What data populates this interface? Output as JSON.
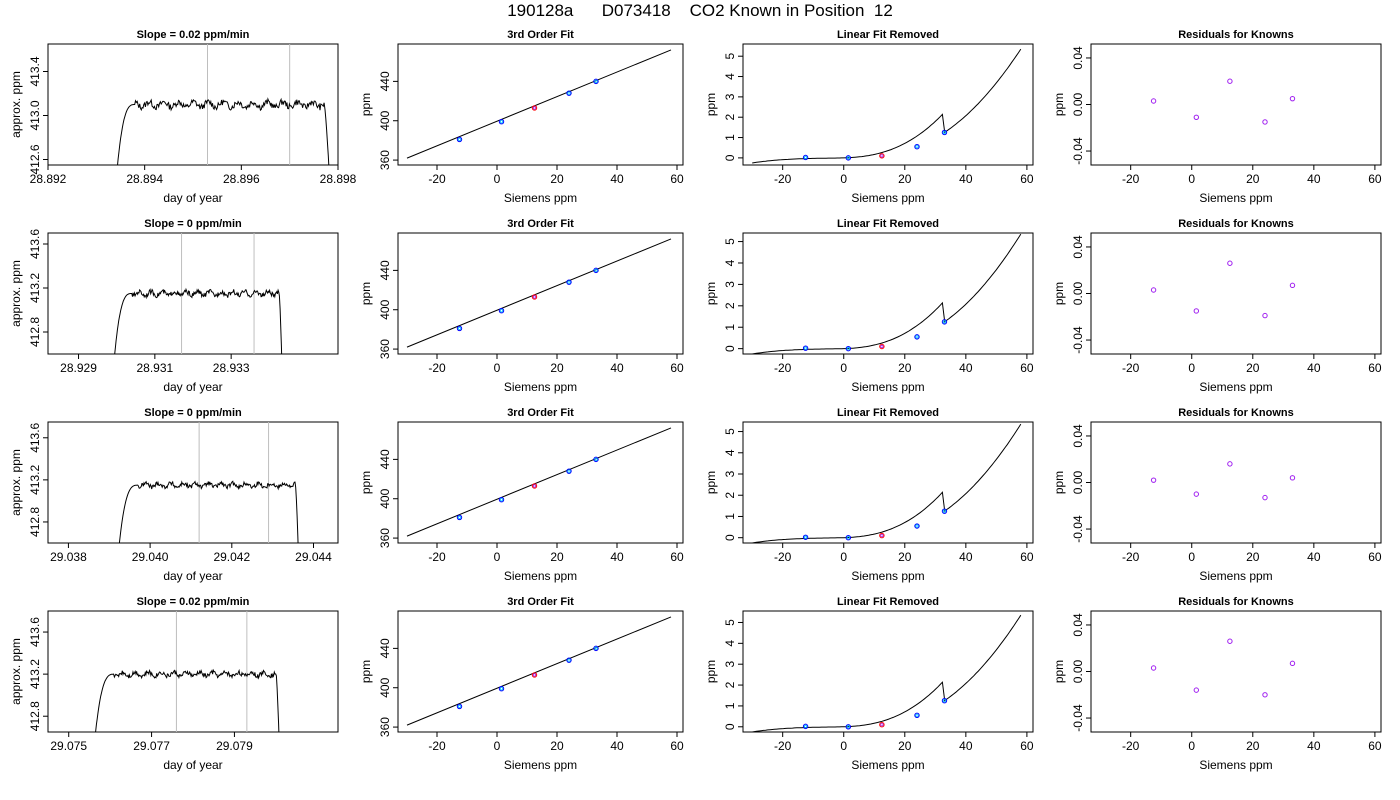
{
  "title": "190128a      D073418    CO2 Known in Position  12",
  "colors": {
    "line": "#000000",
    "vline": "#bebebe",
    "point_blue": "#0000ff",
    "point_purple": "#a020f0",
    "point_cyan": "#00bfff",
    "point_red": "#ff0000"
  },
  "chart_data": [
    {
      "type": "line",
      "title": "Slope =  0.02  ppm/min",
      "xlabel": "day of year",
      "ylabel": "approx. ppm",
      "xlim": [
        28.892,
        28.898
      ],
      "ylim": [
        412.55,
        413.65
      ],
      "xticks": [
        "28.892",
        "28.894",
        "28.896",
        "28.898"
      ],
      "yticks": [
        "412.6",
        "413.0",
        "413.4"
      ],
      "vlines": [
        28.8953,
        28.897
      ],
      "trace": {
        "x_start": 28.8934,
        "x_rise_end": 28.8938,
        "x_fall": 28.8977,
        "x_end": 28.89785,
        "level": 413.1,
        "amplitude": 0.04
      },
      "grid": false
    },
    {
      "type": "scatter",
      "title": "3rd Order Fit",
      "xlabel": "Siemens ppm",
      "ylabel": "ppm",
      "xlim": [
        -33,
        62
      ],
      "ylim": [
        355,
        478
      ],
      "xticks": [
        "-20",
        "0",
        "20",
        "40",
        "60"
      ],
      "yticks": [
        "360",
        "400",
        "440"
      ],
      "points": {
        "x": [
          -12.5,
          1.5,
          12.5,
          24,
          33
        ],
        "y": [
          381,
          399,
          413,
          428,
          440
        ]
      },
      "fit_line": {
        "x": [
          -30,
          58
        ],
        "y": [
          362,
          472
        ]
      },
      "grid": false
    },
    {
      "type": "line",
      "title": "Linear Fit Removed",
      "xlabel": "Siemens ppm",
      "ylabel": "ppm",
      "xlim": [
        -33,
        62
      ],
      "ylim": [
        -0.35,
        5.6
      ],
      "xticks": [
        "-20",
        "0",
        "20",
        "40",
        "60"
      ],
      "yticks": [
        "0",
        "1",
        "2",
        "3",
        "4",
        "5"
      ],
      "points": {
        "x": [
          -12.5,
          1.5,
          12.5,
          24,
          33
        ],
        "y": [
          0.02,
          0.0,
          0.1,
          0.55,
          1.25
        ]
      },
      "curve_x_range": [
        -30,
        58
      ],
      "grid": false
    },
    {
      "type": "scatter",
      "title": "Residuals for Knowns",
      "xlabel": "Siemens ppm",
      "ylabel": "ppm",
      "xlim": [
        -33,
        62
      ],
      "ylim": [
        -0.052,
        0.052
      ],
      "xticks": [
        "-20",
        "0",
        "20",
        "40",
        "60"
      ],
      "yticks": [
        "-0.04",
        "0.00",
        "0.04"
      ],
      "points": {
        "x": [
          -12.5,
          1.5,
          12.5,
          24,
          33
        ],
        "y": [
          0.003,
          -0.011,
          0.02,
          -0.015,
          0.005
        ]
      },
      "grid": false
    },
    {
      "type": "line",
      "title": "Slope =  0  ppm/min",
      "xlabel": "day of year",
      "ylabel": "approx. ppm",
      "xlim": [
        28.9282,
        28.9358
      ],
      "ylim": [
        412.6,
        413.7
      ],
      "xticks": [
        "28.929",
        "28.931",
        "28.933"
      ],
      "yticks": [
        "412.8",
        "413.2",
        "413.6"
      ],
      "vlines": [
        28.9317,
        28.9336
      ],
      "trace": {
        "x_start": 28.9299,
        "x_rise_end": 28.9304,
        "x_fall": 28.93425,
        "x_end": 28.93435,
        "level": 413.15,
        "amplitude": 0.03
      },
      "grid": false
    },
    {
      "type": "scatter",
      "title": "3rd Order Fit",
      "xlabel": "Siemens ppm",
      "ylabel": "ppm",
      "xlim": [
        -33,
        62
      ],
      "ylim": [
        355,
        478
      ],
      "xticks": [
        "-20",
        "0",
        "20",
        "40",
        "60"
      ],
      "yticks": [
        "360",
        "400",
        "440"
      ],
      "points": {
        "x": [
          -12.5,
          1.5,
          12.5,
          24,
          33
        ],
        "y": [
          381,
          399,
          413,
          428,
          440
        ]
      },
      "fit_line": {
        "x": [
          -30,
          58
        ],
        "y": [
          362,
          472
        ]
      },
      "grid": false
    },
    {
      "type": "line",
      "title": "Linear Fit Removed",
      "xlabel": "Siemens ppm",
      "ylabel": "ppm",
      "xlim": [
        -33,
        62
      ],
      "ylim": [
        -0.25,
        5.4
      ],
      "xticks": [
        "-20",
        "0",
        "20",
        "40",
        "60"
      ],
      "yticks": [
        "0",
        "1",
        "2",
        "3",
        "4",
        "5"
      ],
      "points": {
        "x": [
          -12.5,
          1.5,
          12.5,
          24,
          33
        ],
        "y": [
          0.02,
          0.0,
          0.1,
          0.55,
          1.25
        ]
      },
      "curve_x_range": [
        -30,
        58
      ],
      "grid": false
    },
    {
      "type": "scatter",
      "title": "Residuals for Knowns",
      "xlabel": "Siemens ppm",
      "ylabel": "ppm",
      "xlim": [
        -33,
        62
      ],
      "ylim": [
        -0.052,
        0.052
      ],
      "xticks": [
        "-20",
        "0",
        "20",
        "40",
        "60"
      ],
      "yticks": [
        "-0.04",
        "0.00",
        "0.04"
      ],
      "points": {
        "x": [
          -12.5,
          1.5,
          12.5,
          24,
          33
        ],
        "y": [
          0.003,
          -0.015,
          0.026,
          -0.019,
          0.007
        ]
      },
      "grid": false
    },
    {
      "type": "line",
      "title": "Slope =  0  ppm/min",
      "xlabel": "day of year",
      "ylabel": "approx. ppm",
      "xlim": [
        29.0375,
        29.0446
      ],
      "ylim": [
        412.6,
        413.75
      ],
      "xticks": [
        "29.038",
        "29.040",
        "29.042",
        "29.044"
      ],
      "yticks": [
        "412.8",
        "413.2",
        "413.6"
      ],
      "vlines": [
        29.0412,
        29.0429
      ],
      "trace": {
        "x_start": 29.0392,
        "x_rise_end": 29.0397,
        "x_fall": 29.04355,
        "x_end": 29.04365,
        "level": 413.15,
        "amplitude": 0.03
      },
      "grid": false
    },
    {
      "type": "scatter",
      "title": "3rd Order Fit",
      "xlabel": "Siemens ppm",
      "ylabel": "ppm",
      "xlim": [
        -33,
        62
      ],
      "ylim": [
        355,
        478
      ],
      "xticks": [
        "-20",
        "0",
        "20",
        "40",
        "60"
      ],
      "yticks": [
        "360",
        "400",
        "440"
      ],
      "points": {
        "x": [
          -12.5,
          1.5,
          12.5,
          24,
          33
        ],
        "y": [
          381,
          399,
          413,
          428,
          440
        ]
      },
      "fit_line": {
        "x": [
          -30,
          58
        ],
        "y": [
          362,
          472
        ]
      },
      "grid": false
    },
    {
      "type": "line",
      "title": "Linear Fit Removed",
      "xlabel": "Siemens ppm",
      "ylabel": "ppm",
      "xlim": [
        -33,
        62
      ],
      "ylim": [
        -0.25,
        5.45
      ],
      "xticks": [
        "-20",
        "0",
        "20",
        "40",
        "60"
      ],
      "yticks": [
        "0",
        "1",
        "2",
        "3",
        "4",
        "5"
      ],
      "points": {
        "x": [
          -12.5,
          1.5,
          12.5,
          24,
          33
        ],
        "y": [
          0.02,
          0.0,
          0.1,
          0.55,
          1.25
        ]
      },
      "curve_x_range": [
        -30,
        58
      ],
      "grid": false
    },
    {
      "type": "scatter",
      "title": "Residuals for Knowns",
      "xlabel": "Siemens ppm",
      "ylabel": "ppm",
      "xlim": [
        -33,
        62
      ],
      "ylim": [
        -0.052,
        0.052
      ],
      "xticks": [
        "-20",
        "0",
        "20",
        "40",
        "60"
      ],
      "yticks": [
        "-0.04",
        "0.00",
        "0.04"
      ],
      "points": {
        "x": [
          -12.5,
          1.5,
          12.5,
          24,
          33
        ],
        "y": [
          0.002,
          -0.01,
          0.016,
          -0.013,
          0.004
        ]
      },
      "grid": false
    },
    {
      "type": "line",
      "title": "Slope =  0.02  ppm/min",
      "xlabel": "day of year",
      "ylabel": "approx. ppm",
      "xlim": [
        29.0745,
        29.0815
      ],
      "ylim": [
        412.65,
        413.8
      ],
      "xticks": [
        "29.075",
        "29.077",
        "29.079"
      ],
      "yticks": [
        "412.8",
        "413.2",
        "413.6"
      ],
      "vlines": [
        29.0776,
        29.0793
      ],
      "trace": {
        "x_start": 29.0756,
        "x_rise_end": 29.0761,
        "x_fall": 29.08,
        "x_end": 29.0801,
        "level": 413.2,
        "amplitude": 0.03
      },
      "grid": false
    },
    {
      "type": "scatter",
      "title": "3rd Order Fit",
      "xlabel": "Siemens ppm",
      "ylabel": "ppm",
      "xlim": [
        -33,
        62
      ],
      "ylim": [
        355,
        478
      ],
      "xticks": [
        "-20",
        "0",
        "20",
        "40",
        "60"
      ],
      "yticks": [
        "360",
        "400",
        "440"
      ],
      "points": {
        "x": [
          -12.5,
          1.5,
          12.5,
          24,
          33
        ],
        "y": [
          381,
          399,
          413,
          428,
          440
        ]
      },
      "fit_line": {
        "x": [
          -30,
          58
        ],
        "y": [
          362,
          472
        ]
      },
      "grid": false
    },
    {
      "type": "line",
      "title": "Linear Fit Removed",
      "xlabel": "Siemens ppm",
      "ylabel": "ppm",
      "xlim": [
        -33,
        62
      ],
      "ylim": [
        -0.25,
        5.55
      ],
      "xticks": [
        "-20",
        "0",
        "20",
        "40",
        "60"
      ],
      "yticks": [
        "0",
        "1",
        "2",
        "3",
        "4",
        "5"
      ],
      "points": {
        "x": [
          -12.5,
          1.5,
          12.5,
          24,
          33
        ],
        "y": [
          0.02,
          0.0,
          0.1,
          0.55,
          1.25
        ]
      },
      "curve_x_range": [
        -30,
        58
      ],
      "grid": false
    },
    {
      "type": "scatter",
      "title": "Residuals for Knowns",
      "xlabel": "Siemens ppm",
      "ylabel": "ppm",
      "xlim": [
        -33,
        62
      ],
      "ylim": [
        -0.052,
        0.052
      ],
      "xticks": [
        "-20",
        "0",
        "20",
        "40",
        "60"
      ],
      "yticks": [
        "-0.04",
        "0.00",
        "0.04"
      ],
      "points": {
        "x": [
          -12.5,
          1.5,
          12.5,
          24,
          33
        ],
        "y": [
          0.003,
          -0.016,
          0.026,
          -0.02,
          0.007
        ]
      },
      "grid": false
    }
  ]
}
